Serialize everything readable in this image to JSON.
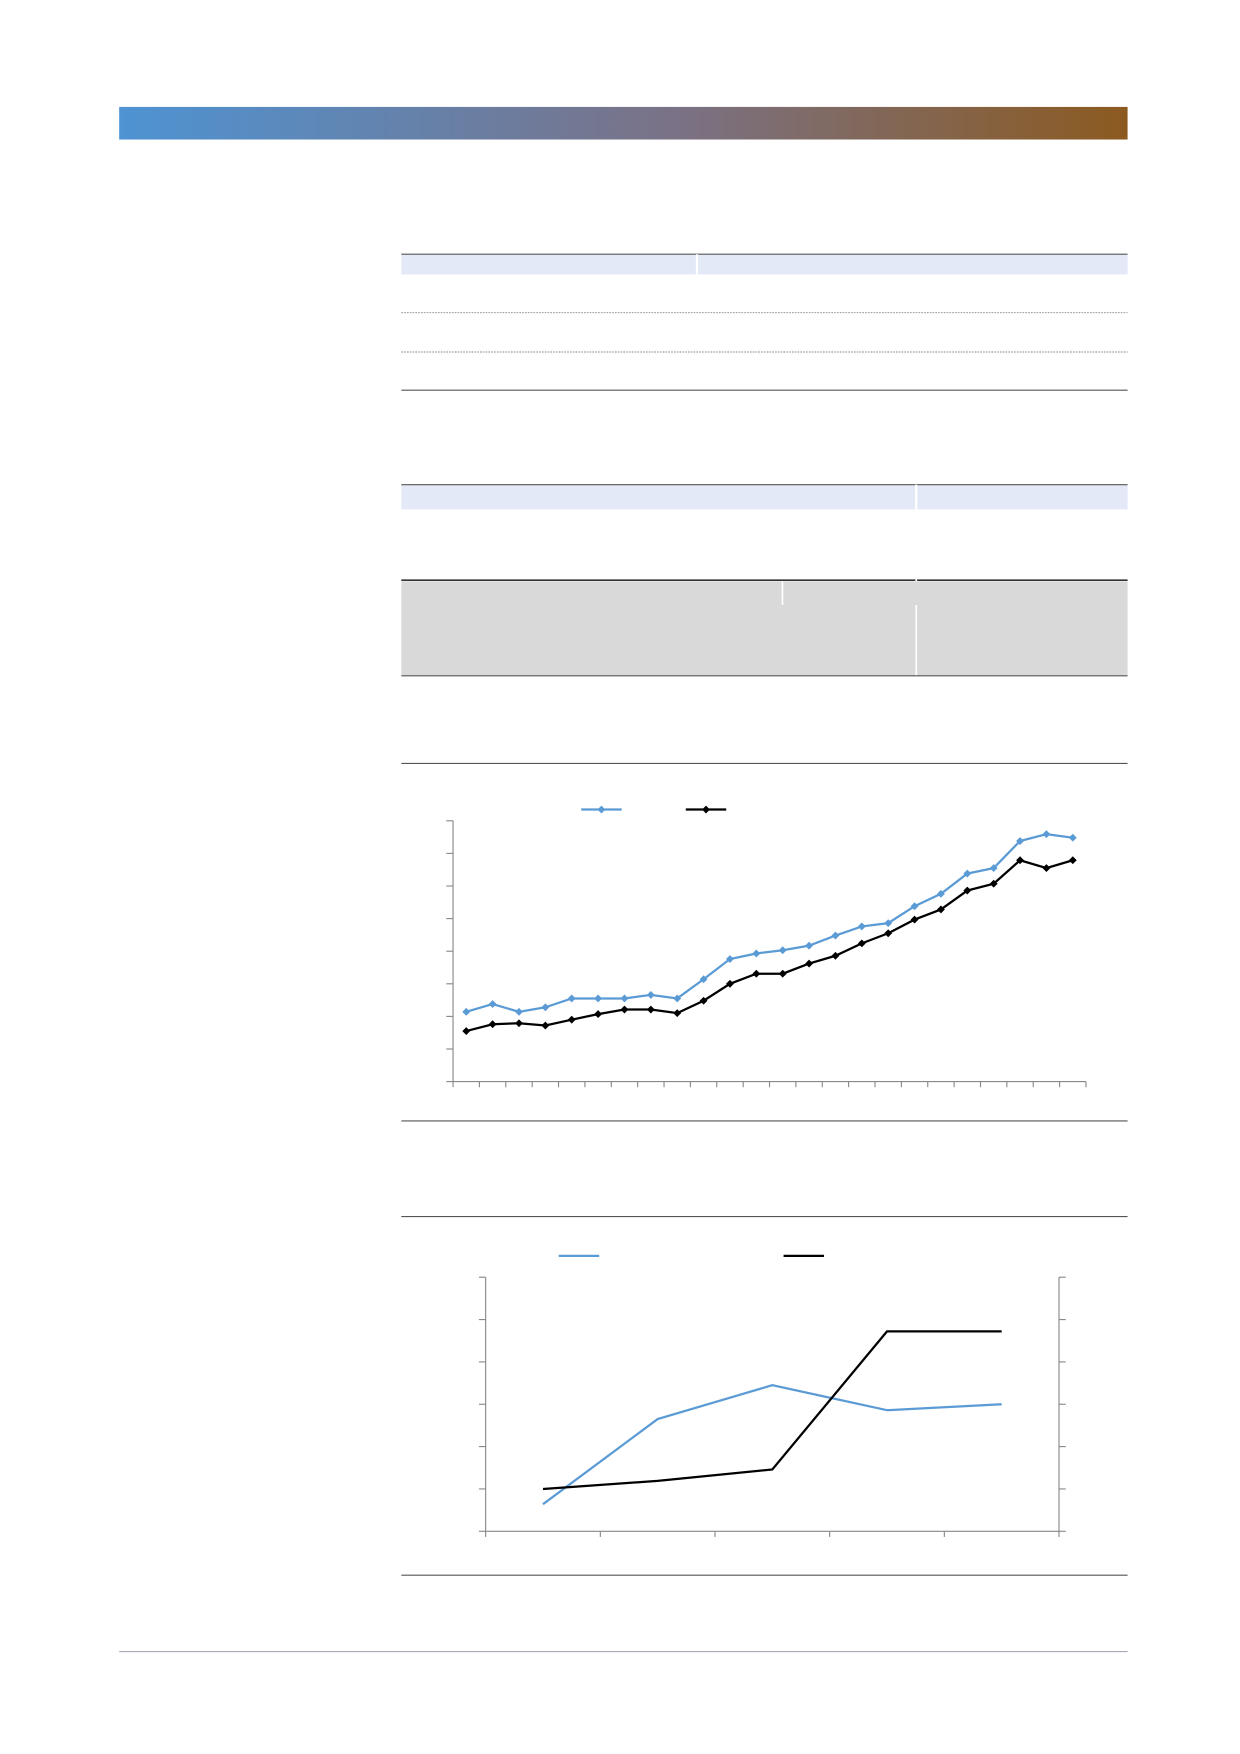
{
  "chart_data": [
    {
      "type": "line",
      "categories": [
        null,
        null,
        null,
        null,
        null,
        null,
        null,
        null,
        null,
        null,
        null,
        null,
        null,
        null,
        null,
        null,
        null,
        null,
        null,
        null,
        null,
        null,
        null,
        null
      ],
      "series": [
        {
          "color": "#5b9bd5",
          "marker": "diamond",
          "values": [
            2.14,
            2.38,
            2.14,
            2.28,
            2.55,
            2.55,
            2.55,
            2.66,
            2.55,
            3.14,
            3.76,
            3.93,
            4.03,
            4.17,
            4.48,
            4.76,
            4.86,
            5.38,
            5.76,
            6.38,
            6.55,
            7.38,
            7.59,
            7.48
          ]
        },
        {
          "color": "#000000",
          "marker": "diamond",
          "values": [
            1.55,
            1.76,
            1.79,
            1.72,
            1.9,
            2.07,
            2.21,
            2.21,
            2.1,
            2.48,
            3.0,
            3.31,
            3.31,
            3.62,
            3.86,
            4.24,
            4.55,
            4.97,
            5.28,
            5.86,
            6.07,
            6.79,
            6.55,
            6.79
          ]
        }
      ],
      "ylim": [
        0,
        8
      ],
      "yticks": [
        0,
        1,
        2,
        3,
        4,
        5,
        6,
        7,
        8
      ]
    },
    {
      "type": "line",
      "categories": [
        null,
        null,
        null,
        null,
        null
      ],
      "series": [
        {
          "color": "#5b9bd5",
          "values": [
            0.64,
            2.65,
            3.45,
            2.86,
            3.0
          ]
        },
        {
          "color": "#000000",
          "axis": "y2",
          "values": [
            1.0,
            1.19,
            1.46,
            4.72,
            4.72
          ]
        }
      ],
      "ylim": [
        0,
        6
      ],
      "yticks": [
        0,
        1,
        2,
        3,
        4,
        5,
        6
      ],
      "y2lim": [
        0,
        6
      ],
      "y2ticks": [
        0,
        1,
        2,
        3,
        4,
        5,
        6
      ]
    }
  ]
}
